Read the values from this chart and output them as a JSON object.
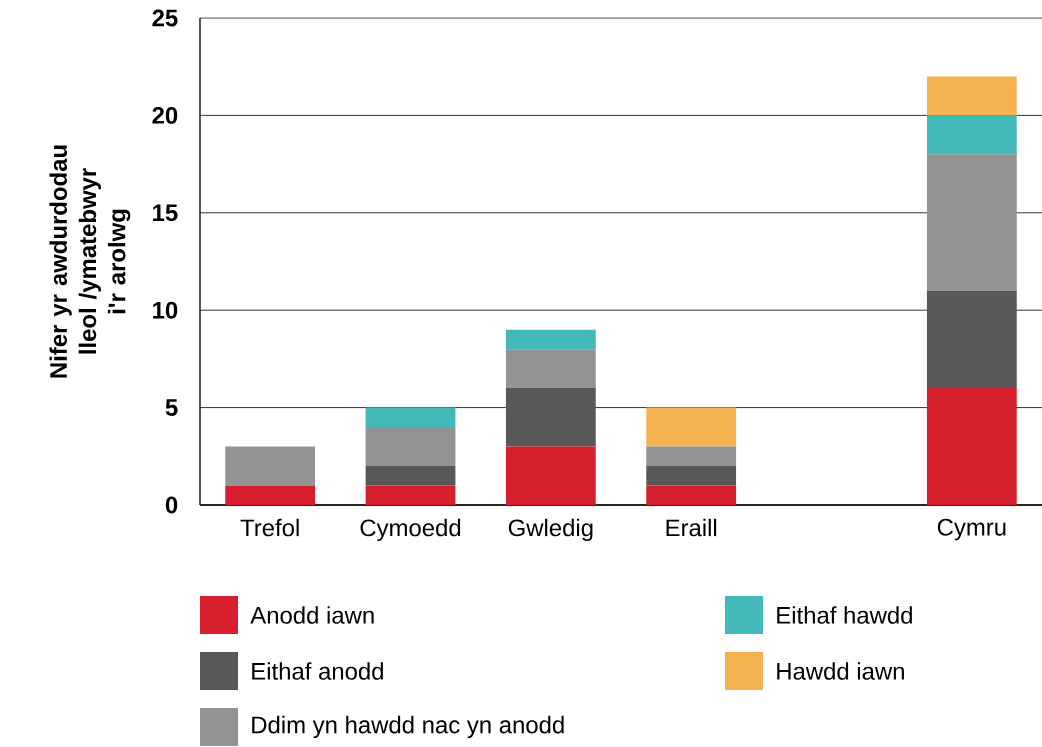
{
  "chart_data": {
    "type": "bar",
    "stacked": true,
    "ylabel": "Nifer yr awdurdodau lleol /ymatebwyr i'r arolwg",
    "categories": [
      "Trefol",
      "Cymoedd",
      "Gwledig",
      "Eraill",
      null,
      "Cymru"
    ],
    "series": [
      {
        "name": "Anodd iawn",
        "color": "#d7202e",
        "values": [
          1,
          1,
          3,
          1,
          null,
          6
        ]
      },
      {
        "name": "Eithaf anodd",
        "color": "#575857",
        "values": [
          0,
          1,
          3,
          1,
          null,
          5
        ]
      },
      {
        "name": "Ddim yn hawdd nac yn anodd",
        "color": "#939393",
        "values": [
          2,
          2,
          2,
          1,
          null,
          7
        ]
      },
      {
        "name": "Eithaf hawdd",
        "color": "#44b9b9",
        "values": [
          0,
          1,
          1,
          0,
          null,
          2
        ]
      },
      {
        "name": "Hawdd iawn",
        "color": "#f4b350",
        "values": [
          0,
          0,
          0,
          2,
          null,
          2
        ]
      }
    ],
    "ylim": [
      0,
      25
    ],
    "yticks": [
      0,
      5,
      10,
      15,
      20,
      25
    ],
    "grid": "y",
    "legend": "bottom"
  }
}
